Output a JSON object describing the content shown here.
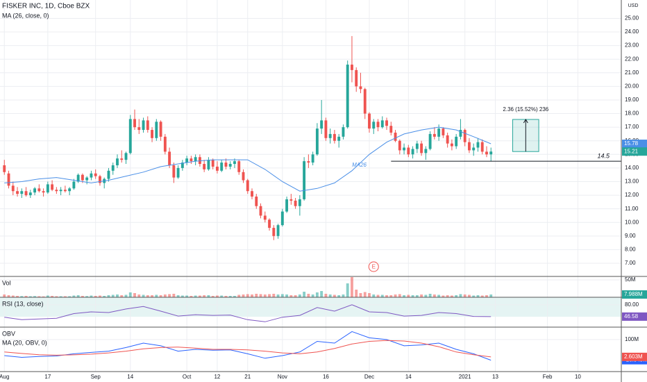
{
  "chart_data": {
    "type": "candlestick",
    "title": "FISKER INC, 1D, Cboe BZX",
    "currency": "USD",
    "up_color": "#26a69a",
    "down_color": "#ef5350",
    "ohlc": [
      [
        14.2,
        14.6,
        13.5,
        13.7
      ],
      [
        13.6,
        13.8,
        12.5,
        12.7
      ],
      [
        12.7,
        13.0,
        12.0,
        12.3
      ],
      [
        12.3,
        12.6,
        11.9,
        12.1
      ],
      [
        12.1,
        12.5,
        11.8,
        12.3
      ],
      [
        12.3,
        12.6,
        11.9,
        12.0
      ],
      [
        12.0,
        12.4,
        11.8,
        12.2
      ],
      [
        12.2,
        12.6,
        12.0,
        12.5
      ],
      [
        12.5,
        12.8,
        12.2,
        12.3
      ],
      [
        12.3,
        12.5,
        11.9,
        12.2
      ],
      [
        12.2,
        13.0,
        12.1,
        12.8
      ],
      [
        12.8,
        13.1,
        12.3,
        12.4
      ],
      [
        12.4,
        12.6,
        12.1,
        12.3
      ],
      [
        12.3,
        12.6,
        12.0,
        12.4
      ],
      [
        12.4,
        12.7,
        12.2,
        12.3
      ],
      [
        12.3,
        12.6,
        12.0,
        12.5
      ],
      [
        12.5,
        13.2,
        12.4,
        13.0
      ],
      [
        13.0,
        13.6,
        12.9,
        13.5
      ],
      [
        13.5,
        13.6,
        12.9,
        13.1
      ],
      [
        13.1,
        13.4,
        12.8,
        13.3
      ],
      [
        13.3,
        13.8,
        13.1,
        13.6
      ],
      [
        13.6,
        13.9,
        13.2,
        13.4
      ],
      [
        13.4,
        13.5,
        12.7,
        12.9
      ],
      [
        12.9,
        13.3,
        12.5,
        13.2
      ],
      [
        13.2,
        14.0,
        13.0,
        13.8
      ],
      [
        13.8,
        14.4,
        13.5,
        14.2
      ],
      [
        14.2,
        15.0,
        14.0,
        14.7
      ],
      [
        14.7,
        15.3,
        14.4,
        14.6
      ],
      [
        14.6,
        15.2,
        14.3,
        15.1
      ],
      [
        15.1,
        17.9,
        15.0,
        17.6
      ],
      [
        17.6,
        18.3,
        16.8,
        17.0
      ],
      [
        17.0,
        17.6,
        16.5,
        16.8
      ],
      [
        16.8,
        17.7,
        16.6,
        17.5
      ],
      [
        17.5,
        17.8,
        16.6,
        16.8
      ],
      [
        16.8,
        17.0,
        15.9,
        16.2
      ],
      [
        16.2,
        17.6,
        16.0,
        17.4
      ],
      [
        17.4,
        17.5,
        16.0,
        16.3
      ],
      [
        16.3,
        16.5,
        15.0,
        15.2
      ],
      [
        15.2,
        15.5,
        14.0,
        14.2
      ],
      [
        14.2,
        14.4,
        12.9,
        13.3
      ],
      [
        13.3,
        14.2,
        13.2,
        14.0
      ],
      [
        14.0,
        14.6,
        13.8,
        14.4
      ],
      [
        14.4,
        14.9,
        14.2,
        14.7
      ],
      [
        14.7,
        14.9,
        14.3,
        14.5
      ],
      [
        14.5,
        15.0,
        14.2,
        14.8
      ],
      [
        14.8,
        15.0,
        14.1,
        14.3
      ],
      [
        14.3,
        14.6,
        13.7,
        13.9
      ],
      [
        13.9,
        14.8,
        13.8,
        14.6
      ],
      [
        14.6,
        14.7,
        13.9,
        14.1
      ],
      [
        14.1,
        14.5,
        13.6,
        13.8
      ],
      [
        13.8,
        14.6,
        13.7,
        14.4
      ],
      [
        14.4,
        14.7,
        13.9,
        14.1
      ],
      [
        14.1,
        14.5,
        13.9,
        14.3
      ],
      [
        14.3,
        14.7,
        14.0,
        14.5
      ],
      [
        14.5,
        14.6,
        13.5,
        13.7
      ],
      [
        13.7,
        13.9,
        12.9,
        13.1
      ],
      [
        13.1,
        13.2,
        12.1,
        12.3
      ],
      [
        12.3,
        12.5,
        11.7,
        11.9
      ],
      [
        11.9,
        12.1,
        11.0,
        11.2
      ],
      [
        11.2,
        11.4,
        10.3,
        10.5
      ],
      [
        10.5,
        10.8,
        10.0,
        10.2
      ],
      [
        10.2,
        10.3,
        9.4,
        9.6
      ],
      [
        9.6,
        9.8,
        8.7,
        9.0
      ],
      [
        9.0,
        9.9,
        8.8,
        9.8
      ],
      [
        9.8,
        11.0,
        9.7,
        10.8
      ],
      [
        10.8,
        11.9,
        10.7,
        11.7
      ],
      [
        11.7,
        12.1,
        11.3,
        11.6
      ],
      [
        11.6,
        11.8,
        11.0,
        11.2
      ],
      [
        11.2,
        12.0,
        10.5,
        11.7
      ],
      [
        11.7,
        14.8,
        11.6,
        14.5
      ],
      [
        14.5,
        15.0,
        14.0,
        14.4
      ],
      [
        14.4,
        15.2,
        14.2,
        15.0
      ],
      [
        15.0,
        17.3,
        14.9,
        16.9
      ],
      [
        16.9,
        19.0,
        16.5,
        17.5
      ],
      [
        17.5,
        17.7,
        16.0,
        16.2
      ],
      [
        16.2,
        16.9,
        15.8,
        16.5
      ],
      [
        16.5,
        16.8,
        15.8,
        16.0
      ],
      [
        16.0,
        16.5,
        15.5,
        16.3
      ],
      [
        16.3,
        17.2,
        16.1,
        17.0
      ],
      [
        17.0,
        21.9,
        16.9,
        21.6
      ],
      [
        21.6,
        23.7,
        20.3,
        21.2
      ],
      [
        21.2,
        21.4,
        19.6,
        20.0
      ],
      [
        20.0,
        21.0,
        19.5,
        19.8
      ],
      [
        19.8,
        19.9,
        17.6,
        18.0
      ],
      [
        18.0,
        18.1,
        16.6,
        16.9
      ],
      [
        16.9,
        17.6,
        16.5,
        17.4
      ],
      [
        17.4,
        17.6,
        16.7,
        17.0
      ],
      [
        17.0,
        17.8,
        16.9,
        17.5
      ],
      [
        17.5,
        17.7,
        16.8,
        17.1
      ],
      [
        17.1,
        17.4,
        16.4,
        16.6
      ],
      [
        16.6,
        16.8,
        15.9,
        16.0
      ],
      [
        16.0,
        16.1,
        15.0,
        15.3
      ],
      [
        15.3,
        15.8,
        15.0,
        15.5
      ],
      [
        15.5,
        15.7,
        14.8,
        15.0
      ],
      [
        15.0,
        15.6,
        14.7,
        15.4
      ],
      [
        15.4,
        16.0,
        15.1,
        15.8
      ],
      [
        15.8,
        16.0,
        14.9,
        15.1
      ],
      [
        15.1,
        15.6,
        14.6,
        15.4
      ],
      [
        15.4,
        16.7,
        15.3,
        16.5
      ],
      [
        16.5,
        17.0,
        16.1,
        16.3
      ],
      [
        16.3,
        17.2,
        16.0,
        16.9
      ],
      [
        16.9,
        17.0,
        16.2,
        16.4
      ],
      [
        16.4,
        16.6,
        15.5,
        15.8
      ],
      [
        15.8,
        16.1,
        15.3,
        15.6
      ],
      [
        15.6,
        16.5,
        15.4,
        16.3
      ],
      [
        16.3,
        17.6,
        16.1,
        16.8
      ],
      [
        16.8,
        16.9,
        15.6,
        15.9
      ],
      [
        15.9,
        16.2,
        15.1,
        15.3
      ],
      [
        15.3,
        15.8,
        14.9,
        15.5
      ],
      [
        15.5,
        16.2,
        15.2,
        15.9
      ],
      [
        15.9,
        16.1,
        15.0,
        15.2
      ],
      [
        15.2,
        15.6,
        14.8,
        15.0
      ],
      [
        15.0,
        15.5,
        14.5,
        15.21
      ]
    ],
    "xlim": [
      -1,
      142
    ],
    "xticks": [
      {
        "value": 0,
        "label": "Aug"
      },
      {
        "value": 10,
        "label": "17"
      },
      {
        "value": 21,
        "label": "Sep"
      },
      {
        "value": 29,
        "label": "14"
      },
      {
        "value": 42,
        "label": "Oct"
      },
      {
        "value": 49,
        "label": "12"
      },
      {
        "value": 56,
        "label": "21"
      },
      {
        "value": 64,
        "label": "Nov"
      },
      {
        "value": 74,
        "label": "16"
      },
      {
        "value": 84,
        "label": "Dec"
      },
      {
        "value": 93,
        "label": "14"
      },
      {
        "value": 106,
        "label": "2021"
      },
      {
        "value": 113,
        "label": "13"
      },
      {
        "value": 125,
        "label": "Feb"
      },
      {
        "value": 132,
        "label": "10"
      }
    ],
    "ylim": [
      6.03,
      26.35
    ],
    "yticks": [
      {
        "value": 7,
        "label": "7.00"
      },
      {
        "value": 8,
        "label": "8.00"
      },
      {
        "value": 9,
        "label": "9.00"
      },
      {
        "value": 10,
        "label": "10.00"
      },
      {
        "value": 11,
        "label": "11.00"
      },
      {
        "value": 12,
        "label": "12.00"
      },
      {
        "value": 13,
        "label": "13.00"
      },
      {
        "value": 14,
        "label": "14.00"
      },
      {
        "value": 15,
        "label": "15.00"
      },
      {
        "value": 16,
        "label": "16.00"
      },
      {
        "value": 17,
        "label": "17.00"
      },
      {
        "value": 18,
        "label": "18.00"
      },
      {
        "value": 19,
        "label": "19.00"
      },
      {
        "value": 20,
        "label": "20.00"
      },
      {
        "value": 21,
        "label": "21.00"
      },
      {
        "value": 22,
        "label": "22.00"
      },
      {
        "value": 23,
        "label": "23.00"
      },
      {
        "value": 24,
        "label": "24.00"
      },
      {
        "value": 25,
        "label": "25.00"
      }
    ],
    "grid": true,
    "ma": {
      "name": "MA (26, close, 0)",
      "tag": "MA26",
      "color": "#4a8fe7",
      "x": [
        0,
        4,
        8,
        12,
        16,
        20,
        24,
        28,
        32,
        36,
        40,
        44,
        48,
        52,
        56,
        60,
        64,
        68,
        72,
        76,
        80,
        84,
        88,
        92,
        96,
        100,
        104,
        108,
        112
      ],
      "values": [
        12.9,
        13.0,
        13.2,
        13.3,
        13.1,
        12.9,
        13.1,
        13.4,
        13.7,
        14.1,
        14.3,
        14.5,
        14.6,
        14.6,
        14.6,
        13.9,
        13.0,
        12.3,
        12.5,
        12.9,
        13.8,
        15.0,
        15.9,
        16.5,
        16.8,
        17.0,
        16.8,
        16.3,
        15.78
      ]
    },
    "hline": {
      "value": 14.5,
      "x": 89
    },
    "measure": {
      "x": [
        117,
        123
      ],
      "from": 15.21,
      "to": 17.57,
      "label": "2.36 (15.52%) 236"
    },
    "events": [
      {
        "x": 85,
        "label": "E"
      }
    ],
    "volume": {
      "title": "Vol",
      "ylim": [
        0,
        60
      ],
      "yticks": [
        {
          "value": 50,
          "label": "50M"
        }
      ],
      "values": [
        8,
        6,
        5,
        4,
        3.5,
        4,
        3,
        3.5,
        3,
        2.5,
        5,
        4,
        3,
        3,
        3,
        3,
        5,
        6,
        4,
        3.5,
        5,
        4,
        5,
        4,
        6,
        7,
        8,
        6,
        7,
        14,
        12,
        8,
        7,
        6,
        6,
        7,
        6,
        8,
        9,
        10,
        6,
        5,
        5,
        4,
        5,
        5,
        6,
        6,
        4,
        5,
        5,
        4,
        4,
        4,
        7,
        8,
        9,
        8,
        10,
        9,
        8,
        9,
        10,
        8,
        9,
        8,
        6,
        6,
        8,
        16,
        10,
        8,
        14,
        18,
        10,
        8,
        7,
        6,
        8,
        40,
        58,
        22,
        12,
        15,
        12,
        8,
        7,
        7,
        6,
        6,
        8,
        9,
        6,
        7,
        6,
        6,
        8,
        7,
        10,
        8,
        7,
        5,
        6,
        5,
        6,
        9,
        8,
        7,
        5,
        6,
        5,
        6,
        7.988
      ],
      "badge": {
        "value": 7.988,
        "label": "7.988M"
      }
    },
    "rsi": {
      "title": "RSI (13, close)",
      "color": "#7e57c2",
      "ylim": [
        17,
        101
      ],
      "yticks": [
        {
          "value": 80,
          "label": "80.00"
        }
      ],
      "x": [
        0,
        4,
        8,
        12,
        16,
        20,
        24,
        28,
        32,
        36,
        40,
        44,
        48,
        52,
        56,
        60,
        64,
        68,
        72,
        76,
        80,
        84,
        88,
        92,
        96,
        100,
        104,
        108,
        112
      ],
      "values": [
        45,
        38,
        40,
        42,
        55,
        60,
        58,
        68,
        75,
        62,
        48,
        52,
        50,
        51,
        38,
        32,
        45,
        50,
        72,
        62,
        80,
        60,
        58,
        48,
        50,
        58,
        55,
        47,
        46.58
      ]
    },
    "obv": {
      "ylim": [
        -80,
        170
      ],
      "yticks": [
        {
          "value": 100,
          "label": "100M"
        }
      ],
      "series": [
        {
          "name": "OBV",
          "color": "#2962ff",
          "x": [
            0,
            4,
            8,
            12,
            16,
            20,
            24,
            28,
            32,
            36,
            40,
            44,
            48,
            52,
            56,
            60,
            64,
            68,
            72,
            76,
            80,
            84,
            88,
            92,
            96,
            100,
            104,
            108,
            112
          ],
          "values": [
            10,
            0,
            5,
            8,
            20,
            28,
            35,
            55,
            80,
            65,
            35,
            45,
            40,
            42,
            20,
            -5,
            10,
            30,
            90,
            80,
            145,
            110,
            100,
            65,
            70,
            80,
            45,
            20,
            -16.049
          ],
          "badge": {
            "value": -16.049,
            "label": "-16.049M"
          }
        },
        {
          "name": "MA (20, OBV, 0)",
          "color": "#ef5350",
          "x": [
            0,
            4,
            8,
            12,
            16,
            20,
            24,
            28,
            32,
            36,
            40,
            44,
            48,
            52,
            56,
            60,
            64,
            68,
            72,
            76,
            80,
            84,
            88,
            92,
            96,
            100,
            104,
            108,
            112
          ],
          "values": [
            30,
            22,
            15,
            12,
            14,
            18,
            25,
            35,
            48,
            55,
            58,
            52,
            45,
            45,
            42,
            35,
            25,
            20,
            30,
            50,
            75,
            90,
            95,
            92,
            80,
            60,
            30,
            15,
            2.603
          ],
          "badge": {
            "value": 2.603,
            "label": "2.603M"
          }
        }
      ]
    }
  }
}
